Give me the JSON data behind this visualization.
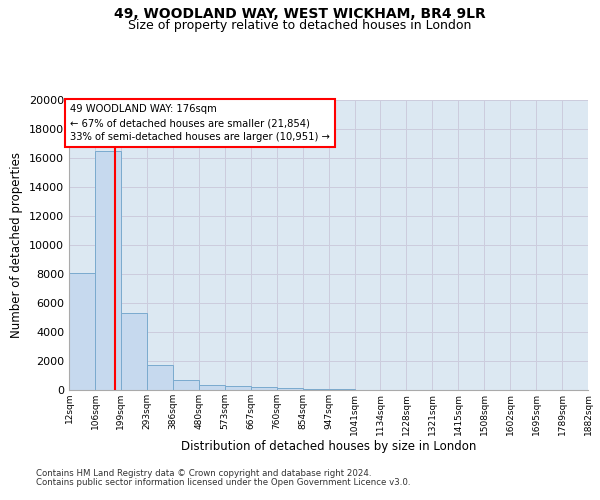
{
  "title1": "49, WOODLAND WAY, WEST WICKHAM, BR4 9LR",
  "title2": "Size of property relative to detached houses in London",
  "xlabel": "Distribution of detached houses by size in London",
  "ylabel": "Number of detached properties",
  "bar_color": "#c6d9ee",
  "bar_edge_color": "#7aaace",
  "annotation_line_color": "red",
  "grid_color": "#ccccdd",
  "bg_color": "#dce8f2",
  "fig_bg_color": "#ffffff",
  "bin_labels": [
    "12sqm",
    "106sqm",
    "199sqm",
    "293sqm",
    "386sqm",
    "480sqm",
    "573sqm",
    "667sqm",
    "760sqm",
    "854sqm",
    "947sqm",
    "1041sqm",
    "1134sqm",
    "1228sqm",
    "1321sqm",
    "1415sqm",
    "1508sqm",
    "1602sqm",
    "1695sqm",
    "1789sqm",
    "1882sqm"
  ],
  "bin_edges": [
    12,
    106,
    199,
    293,
    386,
    480,
    573,
    667,
    760,
    854,
    947,
    1041,
    1134,
    1228,
    1321,
    1415,
    1508,
    1602,
    1695,
    1789,
    1882
  ],
  "values": [
    8100,
    16500,
    5300,
    1750,
    700,
    350,
    270,
    200,
    150,
    90,
    50,
    30,
    20,
    15,
    10,
    8,
    5,
    4,
    3,
    2
  ],
  "red_line_x": 176,
  "annotation_line1": "49 WOODLAND WAY: 176sqm",
  "annotation_line2": "← 67% of detached houses are smaller (21,854)",
  "annotation_line3": "33% of semi-detached houses are larger (10,951) →",
  "ylim": [
    0,
    20000
  ],
  "yticks": [
    0,
    2000,
    4000,
    6000,
    8000,
    10000,
    12000,
    14000,
    16000,
    18000,
    20000
  ],
  "footer1": "Contains HM Land Registry data © Crown copyright and database right 2024.",
  "footer2": "Contains public sector information licensed under the Open Government Licence v3.0."
}
